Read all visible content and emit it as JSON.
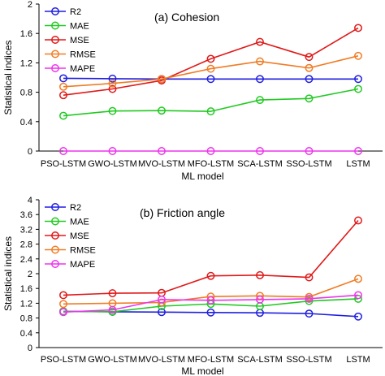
{
  "colors": {
    "R2": "#1f1fe0",
    "MAE": "#22c922",
    "MSE": "#e01919",
    "RMSE": "#f07c24",
    "MAPE": "#ee33ee"
  },
  "chart_data": [
    {
      "type": "line",
      "title": "(a) Cohesion",
      "xlabel": "ML model",
      "ylabel": "Statistical indices",
      "categories": [
        "PSO-LSTM",
        "GWO-LSTM",
        "MVO-LSTM",
        "MFO-LSTM",
        "SCA-LSTM",
        "SSO-LSTM",
        "LSTM"
      ],
      "ylim": [
        0,
        2
      ],
      "yticks": [
        "0",
        "0.4",
        "0.8",
        "1.2",
        "1.6",
        "2"
      ],
      "ytick_values": [
        0,
        0.4,
        0.8,
        1.2,
        1.6,
        2
      ],
      "grid": false,
      "legend_position": "top-left",
      "series": [
        {
          "name": "R2",
          "values": [
            0.99,
            0.985,
            0.98,
            0.98,
            0.98,
            0.98,
            0.98
          ]
        },
        {
          "name": "MAE",
          "values": [
            0.48,
            0.545,
            0.55,
            0.54,
            0.695,
            0.715,
            0.845
          ]
        },
        {
          "name": "MSE",
          "values": [
            0.76,
            0.845,
            0.96,
            1.255,
            1.485,
            1.28,
            1.675
          ]
        },
        {
          "name": "RMSE",
          "values": [
            0.875,
            0.92,
            0.98,
            1.12,
            1.22,
            1.13,
            1.295
          ]
        },
        {
          "name": "MAPE",
          "values": [
            0.0,
            0.0,
            0.0,
            0.0,
            0.0,
            0.0,
            0.0
          ]
        }
      ]
    },
    {
      "type": "line",
      "title": "(b) Friction angle",
      "xlabel": "ML model",
      "ylabel": "Statistical indices",
      "categories": [
        "PSO-LSTM",
        "GWO-LSTM",
        "MVO-LSTM",
        "MFO-LSTM",
        "SCA-LSTM",
        "SSO-LSTM",
        "LSTM"
      ],
      "ylim": [
        0,
        4
      ],
      "yticks": [
        "0",
        "0.4",
        "0.8",
        "1.2",
        "1.6",
        "2",
        "2.4",
        "2.8",
        "3.2",
        "3.6",
        "4"
      ],
      "ytick_values": [
        0,
        0.4,
        0.8,
        1.2,
        1.6,
        2,
        2.4,
        2.8,
        3.2,
        3.6,
        4
      ],
      "grid": false,
      "legend_position": "top-left",
      "series": [
        {
          "name": "R2",
          "values": [
            0.98,
            0.97,
            0.96,
            0.95,
            0.94,
            0.92,
            0.84
          ]
        },
        {
          "name": "MAE",
          "values": [
            0.98,
            0.97,
            1.12,
            1.18,
            1.12,
            1.26,
            1.32
          ]
        },
        {
          "name": "MSE",
          "values": [
            1.42,
            1.47,
            1.48,
            1.94,
            1.96,
            1.9,
            3.44
          ]
        },
        {
          "name": "RMSE",
          "values": [
            1.18,
            1.2,
            1.22,
            1.38,
            1.4,
            1.37,
            1.86
          ]
        },
        {
          "name": "MAPE",
          "values": [
            0.96,
            1.02,
            1.3,
            1.28,
            1.3,
            1.32,
            1.42
          ]
        }
      ]
    }
  ]
}
